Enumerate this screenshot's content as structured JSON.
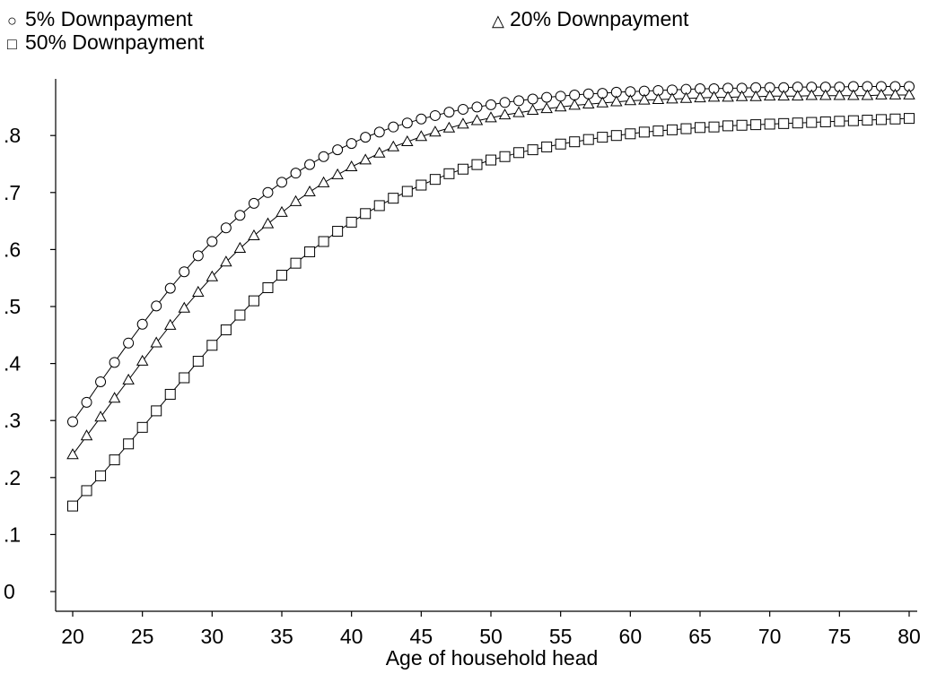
{
  "chart_data": {
    "type": "line",
    "xlabel": "Age of household head",
    "ylabel": "",
    "xlim": [
      20,
      80
    ],
    "ylim": [
      0,
      0.9
    ],
    "xticks": [
      20,
      25,
      30,
      35,
      40,
      45,
      50,
      55,
      60,
      65,
      70,
      75,
      80
    ],
    "xtick_labels": [
      "20",
      "25",
      "30",
      "35",
      "40",
      "45",
      "50",
      "55",
      "60",
      "65",
      "70",
      "75",
      "80"
    ],
    "yticks": [
      0,
      0.1,
      0.2,
      0.3,
      0.4,
      0.5,
      0.6,
      0.7,
      0.8
    ],
    "ytick_labels": [
      "0",
      ".1",
      ".2",
      ".3",
      ".4",
      ".5",
      ".6",
      ".7",
      ".8"
    ],
    "grid": false,
    "legend_position": "top",
    "x": [
      20,
      21,
      22,
      23,
      24,
      25,
      26,
      27,
      28,
      29,
      30,
      31,
      32,
      33,
      34,
      35,
      36,
      37,
      38,
      39,
      40,
      41,
      42,
      43,
      44,
      45,
      46,
      47,
      48,
      49,
      50,
      51,
      52,
      53,
      54,
      55,
      56,
      57,
      58,
      59,
      60,
      61,
      62,
      63,
      64,
      65,
      66,
      67,
      68,
      69,
      70,
      71,
      72,
      73,
      74,
      75,
      76,
      77,
      78,
      79,
      80
    ],
    "series": [
      {
        "name": "5% Downpayment",
        "marker": "circle",
        "values": [
          0.298,
          0.332,
          0.368,
          0.402,
          0.436,
          0.469,
          0.501,
          0.532,
          0.561,
          0.589,
          0.614,
          0.638,
          0.66,
          0.681,
          0.7,
          0.718,
          0.734,
          0.749,
          0.763,
          0.775,
          0.786,
          0.797,
          0.806,
          0.815,
          0.822,
          0.829,
          0.835,
          0.841,
          0.846,
          0.85,
          0.854,
          0.858,
          0.861,
          0.864,
          0.867,
          0.869,
          0.871,
          0.873,
          0.874,
          0.876,
          0.877,
          0.878,
          0.879,
          0.88,
          0.881,
          0.882,
          0.882,
          0.883,
          0.883,
          0.884,
          0.884,
          0.884,
          0.885,
          0.885,
          0.885,
          0.885,
          0.886,
          0.886,
          0.886,
          0.886,
          0.886
        ]
      },
      {
        "name": "20% Downpayment",
        "marker": "triangle",
        "values": [
          0.24,
          0.273,
          0.306,
          0.339,
          0.371,
          0.404,
          0.436,
          0.467,
          0.497,
          0.525,
          0.552,
          0.578,
          0.602,
          0.624,
          0.645,
          0.665,
          0.684,
          0.701,
          0.717,
          0.731,
          0.745,
          0.757,
          0.769,
          0.78,
          0.789,
          0.798,
          0.806,
          0.813,
          0.82,
          0.826,
          0.831,
          0.836,
          0.84,
          0.844,
          0.847,
          0.85,
          0.853,
          0.855,
          0.857,
          0.859,
          0.861,
          0.862,
          0.863,
          0.864,
          0.865,
          0.866,
          0.867,
          0.867,
          0.868,
          0.868,
          0.869,
          0.869,
          0.869,
          0.87,
          0.87,
          0.87,
          0.87,
          0.87,
          0.871,
          0.871,
          0.871
        ]
      },
      {
        "name": "50% Downpayment",
        "marker": "square",
        "values": [
          0.15,
          0.177,
          0.203,
          0.231,
          0.259,
          0.288,
          0.317,
          0.346,
          0.375,
          0.404,
          0.432,
          0.459,
          0.485,
          0.51,
          0.533,
          0.555,
          0.576,
          0.596,
          0.614,
          0.632,
          0.648,
          0.663,
          0.677,
          0.69,
          0.702,
          0.713,
          0.723,
          0.733,
          0.741,
          0.749,
          0.757,
          0.763,
          0.77,
          0.775,
          0.78,
          0.785,
          0.789,
          0.793,
          0.797,
          0.8,
          0.803,
          0.806,
          0.808,
          0.81,
          0.812,
          0.814,
          0.815,
          0.817,
          0.818,
          0.819,
          0.82,
          0.821,
          0.822,
          0.823,
          0.824,
          0.825,
          0.826,
          0.827,
          0.828,
          0.829,
          0.83
        ]
      }
    ]
  },
  "legend": {
    "item1": "5% Downpayment",
    "item2": "20% Downpayment",
    "item3": "50% Downpayment",
    "sym1": "○",
    "sym2": "△",
    "sym3": "□"
  }
}
